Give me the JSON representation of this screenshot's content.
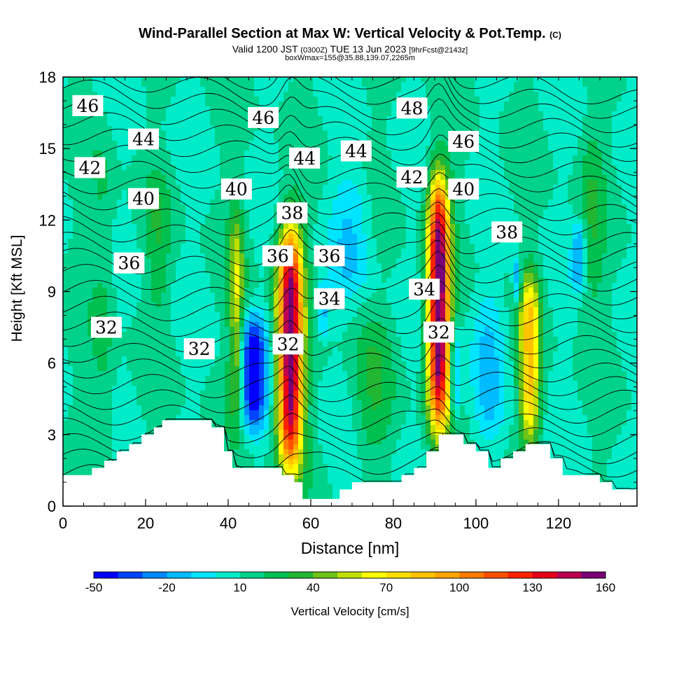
{
  "title": {
    "main": "Wind-Parallel Section at Max W: Vertical Velocity & Pot.Temp.",
    "copyright": "(C)",
    "valid_prefix": "Valid 1200 JST",
    "zulu": "(0300Z)",
    "valid_date": "TUE 13 Jun 2023",
    "forecast": "[9hrFcst@2143z]",
    "box": "boxWmax=155@35.88,139.07,2265m"
  },
  "chart_data": {
    "type": "heatmap",
    "xlabel": "Distance [nm]",
    "ylabel": "Height [Kft MSL]",
    "xlim": [
      0,
      139
    ],
    "ylim": [
      0,
      18
    ],
    "x_ticks": [
      0,
      20,
      40,
      60,
      80,
      100,
      120
    ],
    "y_ticks": [
      0,
      3,
      6,
      9,
      12,
      15,
      18
    ],
    "colorbar": {
      "title": "Vertical Velocity [cm/s]",
      "tick_labels": [
        "-50",
        "-20",
        "10",
        "40",
        "70",
        "100",
        "130",
        "160"
      ],
      "levels": [
        -50,
        -40,
        -30,
        -20,
        -10,
        0,
        10,
        20,
        30,
        40,
        50,
        60,
        70,
        80,
        90,
        100,
        110,
        120,
        130,
        140,
        150,
        160
      ],
      "colors": [
        "#0000ff",
        "#0044ff",
        "#0088ff",
        "#00bbff",
        "#00e5ff",
        "#00ecc8",
        "#00d28c",
        "#00c050",
        "#22b633",
        "#6fc318",
        "#bfe000",
        "#ffff00",
        "#ffdf00",
        "#ffc200",
        "#ffa500",
        "#ff7c00",
        "#ff5000",
        "#ff2200",
        "#e8001a",
        "#bb0050",
        "#7a0077"
      ]
    },
    "updrafts": [
      {
        "x": 42,
        "ybot": 3.5,
        "ytop": 12.5,
        "wmax": 45,
        "width": 1.8
      },
      {
        "x": 55,
        "ybot": 1.5,
        "ytop": 11.8,
        "wmax": 150,
        "width": 3.0
      },
      {
        "x": 91,
        "ybot": 3.2,
        "ytop": 13.8,
        "wmax": 155,
        "width": 2.6
      },
      {
        "x": 113,
        "ybot": 2.6,
        "ytop": 9.8,
        "wmax": 72,
        "width": 2.4
      },
      {
        "x": 23,
        "ybot": 8,
        "ytop": 14,
        "wmax": 15,
        "width": 3
      },
      {
        "x": 10,
        "ybot": 1,
        "ytop": 16,
        "wmax": 12,
        "width": 3
      },
      {
        "x": 75,
        "ybot": 2,
        "ytop": 8,
        "wmax": 15,
        "width": 5
      },
      {
        "x": 128,
        "ybot": 8,
        "ytop": 16,
        "wmax": 15,
        "width": 3
      }
    ],
    "downdrafts": [
      {
        "x": 46,
        "ybot": 3.0,
        "ytop": 8.0,
        "wmin": -48,
        "width": 3.2
      },
      {
        "x": 63,
        "ybot": 7.0,
        "ytop": 9.5,
        "wmin": -15,
        "width": 1.4
      },
      {
        "x": 95,
        "ybot": 3.5,
        "ytop": 7.5,
        "wmin": -18,
        "width": 1.3
      },
      {
        "x": 103,
        "ybot": 2.5,
        "ytop": 9,
        "wmin": -8,
        "width": 4
      },
      {
        "x": 110,
        "ybot": 8.5,
        "ytop": 10.5,
        "wmin": -22,
        "width": 1
      },
      {
        "x": 125,
        "ybot": 9,
        "ytop": 12,
        "wmin": -22,
        "width": 1.5
      },
      {
        "x": 70,
        "ybot": 9,
        "ytop": 14,
        "wmin": -8,
        "width": 5
      }
    ],
    "terrain": {
      "x": [
        0,
        4,
        7,
        10,
        13,
        16,
        19,
        22,
        24,
        27,
        30,
        33,
        36,
        39,
        41,
        44,
        47,
        50,
        53,
        56,
        58,
        61,
        64,
        67,
        70,
        73,
        76,
        79,
        82,
        85,
        88,
        91,
        94,
        97,
        100,
        103,
        106,
        109,
        112,
        115,
        118,
        121,
        124,
        127,
        130,
        133,
        136,
        139
      ],
      "y": [
        1.3,
        1.3,
        1.6,
        1.9,
        2.3,
        2.6,
        3.0,
        3.3,
        3.6,
        3.6,
        3.6,
        3.6,
        3.3,
        2.3,
        1.6,
        1.6,
        1.6,
        1.6,
        1.3,
        1.0,
        0.3,
        0.3,
        0.3,
        0.7,
        1.0,
        1.0,
        1.0,
        1.0,
        1.3,
        1.6,
        2.3,
        3.0,
        3.0,
        2.6,
        2.3,
        1.6,
        2.0,
        2.3,
        2.6,
        2.6,
        2.0,
        1.3,
        1.3,
        1.3,
        1.0,
        0.7,
        0.7,
        0.7
      ]
    },
    "theta_labels": [
      {
        "text": "46",
        "x": 6,
        "y": 16.8
      },
      {
        "text": "44",
        "x": 19.5,
        "y": 15.4
      },
      {
        "text": "42",
        "x": 6.5,
        "y": 14.2
      },
      {
        "text": "40",
        "x": 19.5,
        "y": 12.9
      },
      {
        "text": "36",
        "x": 16,
        "y": 10.2
      },
      {
        "text": "32",
        "x": 10.5,
        "y": 7.5
      },
      {
        "text": "32",
        "x": 33,
        "y": 6.6
      },
      {
        "text": "40",
        "x": 42,
        "y": 13.3
      },
      {
        "text": "46",
        "x": 48.5,
        "y": 16.3
      },
      {
        "text": "44",
        "x": 58.5,
        "y": 14.6
      },
      {
        "text": "44",
        "x": 71,
        "y": 14.9
      },
      {
        "text": "38",
        "x": 55.5,
        "y": 12.3
      },
      {
        "text": "36",
        "x": 52,
        "y": 10.5
      },
      {
        "text": "36",
        "x": 64.5,
        "y": 10.5
      },
      {
        "text": "34",
        "x": 64.5,
        "y": 8.7
      },
      {
        "text": "32",
        "x": 54.5,
        "y": 6.8
      },
      {
        "text": "48",
        "x": 84.5,
        "y": 16.7
      },
      {
        "text": "46",
        "x": 97,
        "y": 15.3
      },
      {
        "text": "42",
        "x": 84.5,
        "y": 13.8
      },
      {
        "text": "40",
        "x": 97,
        "y": 13.3
      },
      {
        "text": "34",
        "x": 87.5,
        "y": 9.1
      },
      {
        "text": "32",
        "x": 91,
        "y": 7.3
      },
      {
        "text": "38",
        "x": 107.5,
        "y": 11.5
      }
    ]
  }
}
